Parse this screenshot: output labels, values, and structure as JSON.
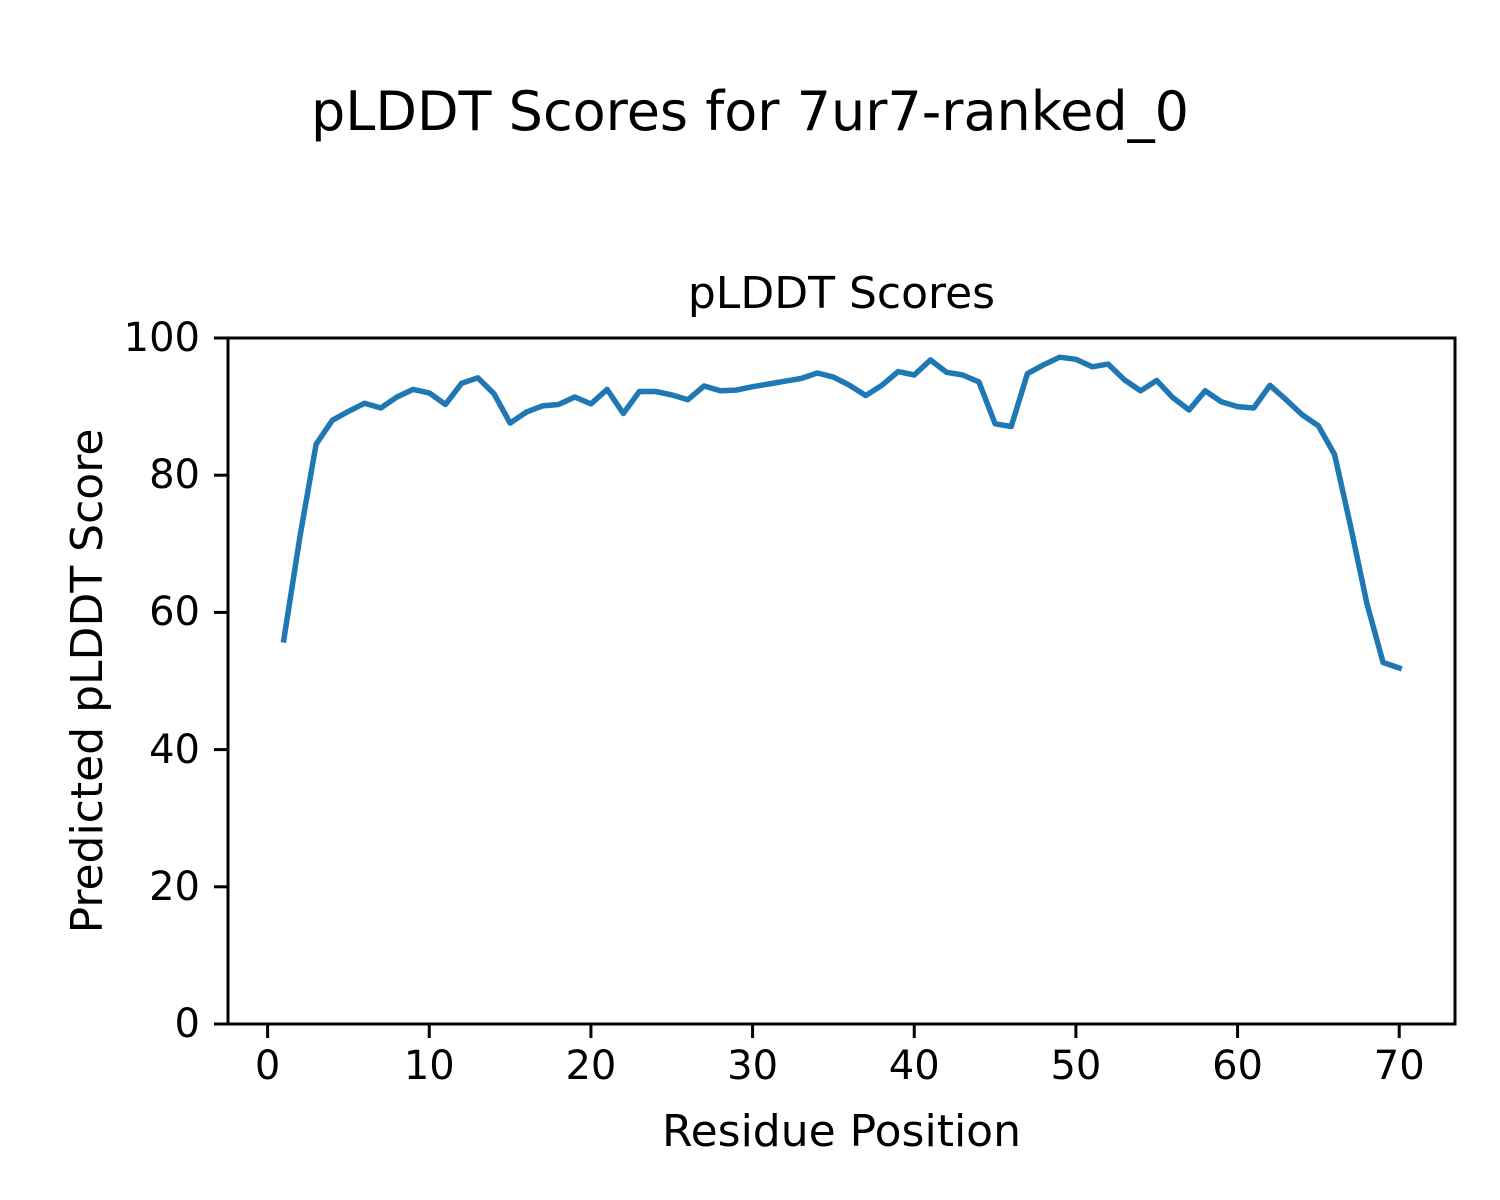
{
  "figure": {
    "suptitle": "pLDDT Scores for 7ur7-ranked_0",
    "background": "#ffffff"
  },
  "chart_data": {
    "type": "line",
    "title": "pLDDT Scores",
    "xlabel": "Residue Position",
    "ylabel": "Predicted pLDDT Score",
    "xlim": [
      -2.45,
      73.45
    ],
    "ylim": [
      0,
      100
    ],
    "xticks": [
      0,
      10,
      20,
      30,
      40,
      50,
      60,
      70
    ],
    "yticks": [
      0,
      20,
      40,
      60,
      80,
      100
    ],
    "grid": false,
    "legend": "none",
    "line_color": "#1f77b4",
    "line_width": 5.5,
    "x": [
      1,
      2,
      3,
      4,
      5,
      6,
      7,
      8,
      9,
      10,
      11,
      12,
      13,
      14,
      15,
      16,
      17,
      18,
      19,
      20,
      21,
      22,
      23,
      24,
      25,
      26,
      27,
      28,
      29,
      30,
      31,
      32,
      33,
      34,
      35,
      36,
      37,
      38,
      39,
      40,
      41,
      42,
      43,
      44,
      45,
      46,
      47,
      48,
      49,
      50,
      51,
      52,
      53,
      54,
      55,
      56,
      57,
      58,
      59,
      60,
      61,
      62,
      63,
      64,
      65,
      66,
      67,
      68,
      69,
      70
    ],
    "y": [
      56.0,
      71.0,
      84.5,
      88.0,
      89.3,
      90.5,
      89.8,
      91.4,
      92.5,
      92.0,
      90.3,
      93.4,
      94.2,
      91.9,
      87.6,
      89.2,
      90.1,
      90.3,
      91.4,
      90.4,
      92.5,
      89.0,
      92.2,
      92.2,
      91.7,
      91.0,
      93.0,
      92.3,
      92.4,
      92.9,
      93.3,
      93.7,
      94.1,
      94.9,
      94.3,
      93.1,
      91.6,
      93.1,
      95.1,
      94.6,
      96.8,
      95.0,
      94.6,
      93.6,
      87.5,
      87.1,
      94.8,
      96.1,
      97.2,
      96.9,
      95.8,
      96.2,
      93.9,
      92.3,
      93.8,
      91.3,
      89.5,
      92.3,
      90.7,
      90.0,
      89.8,
      93.1,
      91.0,
      88.8,
      87.2,
      83.0,
      72.5,
      61.3,
      52.7,
      51.9
    ]
  }
}
